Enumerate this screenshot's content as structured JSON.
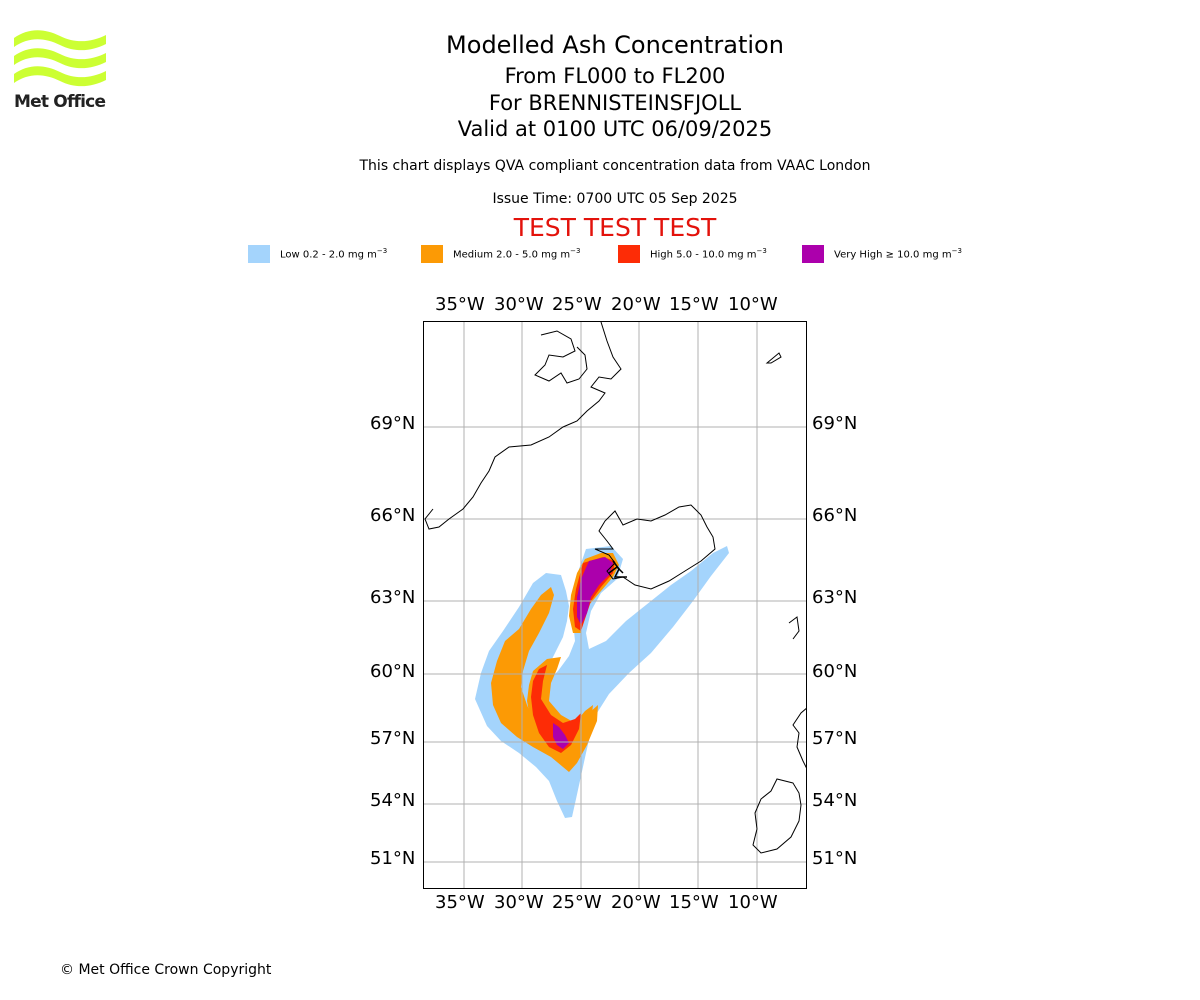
{
  "logo": {
    "name": "Met Office"
  },
  "header": {
    "title": "Modelled Ash Concentration",
    "range": "From FL000 to FL200",
    "volcano": "For BRENNISTEINSFJOLL",
    "valid": "Valid at 0100 UTC 06/09/2025",
    "subtitle": "This chart displays QVA compliant concentration data from VAAC London",
    "issue": "Issue Time: 0700 UTC 05 Sep 2025",
    "test_banner": "TEST TEST TEST"
  },
  "legend": [
    {
      "label": "Low 0.2 - 2.0 mg m",
      "unit_exp": "−3",
      "color": "#a4d4fc"
    },
    {
      "label": "Medium 2.0 - 5.0 mg m",
      "unit_exp": "−3",
      "color": "#fc9a05"
    },
    {
      "label": "High 5.0 - 10.0 mg m",
      "unit_exp": "−3",
      "color": "#fd2c06"
    },
    {
      "label": "Very High ≥ 10.0 mg m",
      "unit_exp": "−3",
      "color": "#ac00ac"
    }
  ],
  "map": {
    "lon_labels": [
      "35°W",
      "30°W",
      "25°W",
      "20°W",
      "15°W",
      "10°W"
    ],
    "lat_labels": [
      "69°N",
      "66°N",
      "63°N",
      "60°N",
      "57°N",
      "54°N",
      "51°N"
    ],
    "gridlines": true
  },
  "footer": {
    "copyright": "© Met Office Crown Copyright"
  }
}
